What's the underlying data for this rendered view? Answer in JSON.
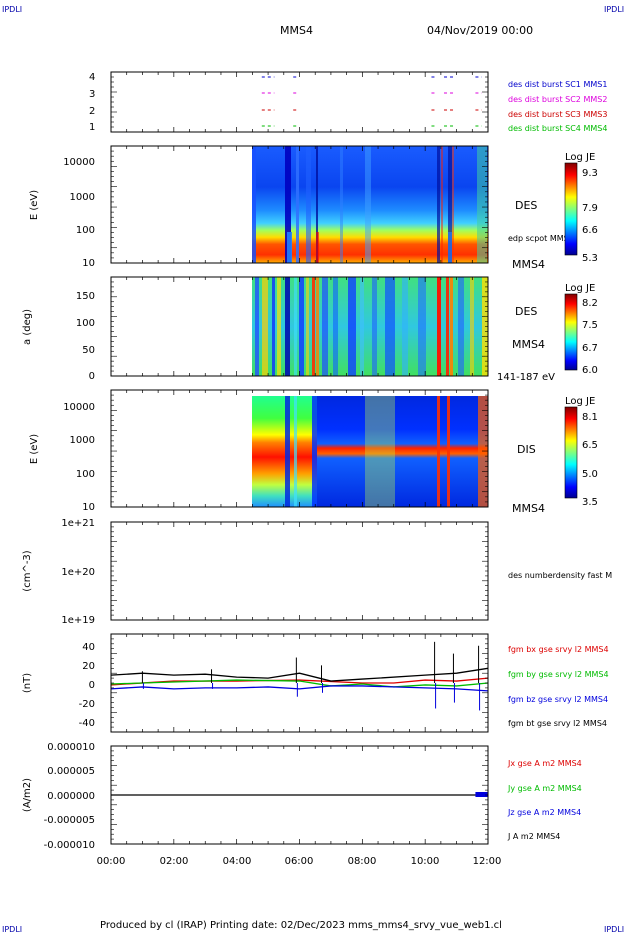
{
  "corner_labels": {
    "tl": "IPDLI",
    "tr": "IPDLI",
    "bl": "IPDLI",
    "br": "IPDLI"
  },
  "header": {
    "spacecraft": "MMS4",
    "date": "04/Nov/2019 00:00"
  },
  "footer": {
    "text": "Produced by cl (IRAP)   Printing date: 02/Dec/2023   mms_mms4_srvy_vue_web1.cl"
  },
  "colors": {
    "red": "#dd0000",
    "green": "#00cc00",
    "blue": "#0000dd",
    "magenta": "#ee00ee",
    "black": "#000000"
  },
  "panels": {
    "availability": {
      "yticks": [
        "1",
        "2",
        "3",
        "4"
      ],
      "legend": [
        {
          "text": "des dist burst SC1 MMS1",
          "color": "#0000cc"
        },
        {
          "text": "des dist burst SC2 MMS2",
          "color": "#dd00dd"
        },
        {
          "text": "des dist burst SC3 MMS3",
          "color": "#cc0000"
        },
        {
          "text": "des dist burst SC4 MMS4",
          "color": "#00bb00"
        }
      ]
    },
    "des_energy": {
      "ylabel": "E (eV)",
      "yticks": [
        "10",
        "100",
        "1000",
        "10000"
      ],
      "label": "DES",
      "sub_label": "edp scpot MMS4",
      "sc_label": "MMS4",
      "cbar_title": "Log JE",
      "cbar_ticks": [
        "9.3",
        "7.9",
        "6.6",
        "5.3"
      ]
    },
    "des_pitch": {
      "ylabel": "a (deg)",
      "yticks": [
        "0",
        "50",
        "100",
        "150"
      ],
      "label": "DES",
      "sc_label": "MMS4",
      "energy_range": "141-187 eV",
      "cbar_title": "Log JE",
      "cbar_ticks": [
        "8.2",
        "7.5",
        "6.7",
        "6.0"
      ]
    },
    "dis_energy": {
      "ylabel": "E (eV)",
      "yticks": [
        "10",
        "100",
        "1000",
        "10000"
      ],
      "label": "DIS",
      "sc_label": "MMS4",
      "cbar_title": "Log JE",
      "cbar_ticks": [
        "8.1",
        "6.5",
        "5.0",
        "3.5"
      ]
    },
    "density": {
      "ylabel": "(cm^-3)",
      "yticks": [
        "1e+19",
        "1e+20",
        "1e+21"
      ],
      "legend": [
        {
          "text": "des numberdensity fast M",
          "color": "#000000"
        }
      ]
    },
    "bfield": {
      "ylabel": "(nT)",
      "yticks": [
        "-40",
        "-20",
        "0",
        "20",
        "40"
      ],
      "legend": [
        {
          "text": "fgm bx gse srvy l2 MMS4",
          "color": "#dd0000"
        },
        {
          "text": "fgm by gse srvy l2 MMS4",
          "color": "#00bb00"
        },
        {
          "text": "fgm bz gse srvy l2 MMS4",
          "color": "#0000dd"
        },
        {
          "text": "fgm bt gse srvy l2 MMS4",
          "color": "#000000"
        }
      ]
    },
    "current": {
      "ylabel": "(A/m2)",
      "yticks": [
        "-0.000010",
        "-0.000005",
        "0.000000",
        "0.000005",
        "0.000010"
      ],
      "legend": [
        {
          "text": "Jx gse A m2 MMS4",
          "color": "#dd0000"
        },
        {
          "text": "Jy gse A m2 MMS4",
          "color": "#00bb00"
        },
        {
          "text": "Jz gse A m2 MMS4",
          "color": "#0000dd"
        },
        {
          "text": "J A m2 MMS4",
          "color": "#000000"
        }
      ]
    }
  },
  "xaxis": {
    "ticks": [
      "00:00",
      "02:00",
      "04:00",
      "06:00",
      "08:00",
      "10:00",
      "12:00"
    ]
  },
  "chart_data": [
    {
      "type": "scatter",
      "title": "",
      "ylim": [
        0.5,
        4.5
      ],
      "x_range_hours": [
        0,
        12
      ],
      "series": [
        {
          "name": "des dist burst SC1 MMS1",
          "y": 4,
          "intervals_hours": [
            [
              4.8,
              5.2
            ],
            [
              5.8,
              5.9
            ],
            [
              10.2,
              10.35
            ],
            [
              10.6,
              10.9
            ],
            [
              11.6,
              11.8
            ]
          ]
        },
        {
          "name": "des dist burst SC2 MMS2",
          "y": 3,
          "intervals_hours": [
            [
              4.8,
              5.2
            ],
            [
              5.8,
              5.9
            ],
            [
              10.2,
              10.35
            ],
            [
              10.6,
              10.9
            ],
            [
              11.6,
              11.8
            ]
          ]
        },
        {
          "name": "des dist burst SC3 MMS3",
          "y": 2,
          "intervals_hours": [
            [
              4.8,
              5.2
            ],
            [
              5.8,
              5.9
            ],
            [
              10.2,
              10.35
            ],
            [
              10.6,
              10.9
            ],
            [
              11.6,
              11.8
            ]
          ]
        },
        {
          "name": "des dist burst SC4 MMS4",
          "y": 1,
          "intervals_hours": [
            [
              4.8,
              5.2
            ],
            [
              5.8,
              5.9
            ],
            [
              10.2,
              10.35
            ],
            [
              10.6,
              10.9
            ],
            [
              11.6,
              11.8
            ]
          ]
        }
      ]
    },
    {
      "type": "heatmap",
      "ylabel": "E (eV)",
      "ylim": [
        10,
        30000
      ],
      "yscale": "log",
      "data_start_hours": 4.55,
      "colorbar_range": [
        5.3,
        9.3
      ]
    },
    {
      "type": "heatmap",
      "ylabel": "a (deg)",
      "ylim": [
        0,
        180
      ],
      "data_start_hours": 4.55,
      "colorbar_range": [
        6.0,
        8.2
      ]
    },
    {
      "type": "heatmap",
      "ylabel": "E (eV)",
      "ylim": [
        10,
        30000
      ],
      "yscale": "log",
      "data_start_hours": 4.55,
      "colorbar_range": [
        3.5,
        8.1
      ]
    },
    {
      "type": "line",
      "ylabel": "(cm^-3)",
      "ylim": [
        1e+19,
        1e+21
      ],
      "yscale": "log",
      "series": []
    },
    {
      "type": "line",
      "ylabel": "(nT)",
      "ylim": [
        -50,
        50
      ],
      "series": [
        {
          "name": "fgm bx gse srvy l2 MMS4",
          "x_hours": [
            0,
            2,
            4,
            6,
            8,
            9,
            10,
            11,
            12
          ],
          "values": [
            -2,
            2,
            2,
            3,
            0,
            0,
            3,
            2,
            5
          ]
        },
        {
          "name": "fgm by gse srvy l2 MMS4",
          "x_hours": [
            0,
            2,
            4,
            6,
            7,
            8,
            9,
            10,
            11,
            12
          ],
          "values": [
            -1,
            1,
            3,
            2,
            -3,
            -1,
            -4,
            -2,
            -3,
            0
          ]
        },
        {
          "name": "fgm bz gse srvy l2 MMS4",
          "x_hours": [
            0,
            1,
            2,
            3,
            4,
            5,
            6,
            7,
            8,
            10,
            11,
            12
          ],
          "values": [
            -6,
            -4,
            -6,
            -5,
            -5,
            -4,
            -6,
            -3,
            -3,
            -5,
            -6,
            -8
          ]
        },
        {
          "name": "fgm bt gse srvy l2 MMS4",
          "x_hours": [
            0,
            1,
            2,
            3,
            4,
            5,
            6,
            7,
            8,
            10,
            11,
            12
          ],
          "values": [
            8,
            10,
            8,
            9,
            6,
            5,
            10,
            2,
            4,
            8,
            10,
            15
          ]
        }
      ]
    },
    {
      "type": "line",
      "ylabel": "(A/m2)",
      "ylim": [
        -1e-05,
        1e-05
      ],
      "series": [
        {
          "name": "J A m2 MMS4",
          "x_hours": [
            0,
            6,
            11.6,
            12
          ],
          "values": [
            0,
            0,
            0,
            0
          ]
        }
      ]
    }
  ]
}
